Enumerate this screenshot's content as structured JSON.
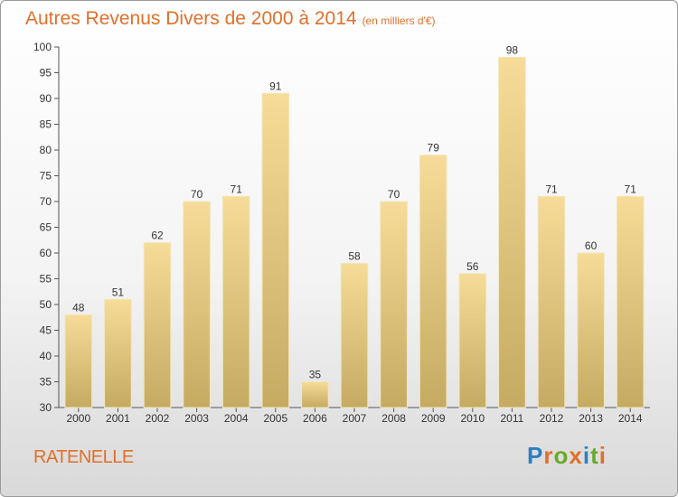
{
  "title": "Autres Revenus Divers de 2000 à 2014",
  "unit_note": "(en milliers d'€)",
  "commune": "RATENELLE",
  "logo": {
    "text": "Proxiti",
    "letter_colors": [
      "#2d7fc1",
      "#e0702a",
      "#6aaa2a",
      "#e0702a",
      "#2d7fc1",
      "#6aaa2a",
      "#e0702a"
    ]
  },
  "chart_data": {
    "type": "bar",
    "title": "Autres Revenus Divers de 2000 à 2014",
    "xlabel": "",
    "ylabel": "",
    "ylim": [
      30,
      100
    ],
    "yticks": [
      30,
      35,
      40,
      45,
      50,
      55,
      60,
      65,
      70,
      75,
      80,
      85,
      90,
      95,
      100
    ],
    "grid": false,
    "categories": [
      "2000",
      "2001",
      "2002",
      "2003",
      "2004",
      "2005",
      "2006",
      "2007",
      "2008",
      "2009",
      "2010",
      "2011",
      "2012",
      "2013",
      "2014"
    ],
    "values": [
      48,
      51,
      62,
      70,
      71,
      91,
      35,
      58,
      70,
      79,
      56,
      98,
      71,
      60,
      71
    ],
    "bar_color_top": "#f6dc98",
    "bar_color_bottom": "#c5aa62",
    "title_color": "#e0702a"
  }
}
